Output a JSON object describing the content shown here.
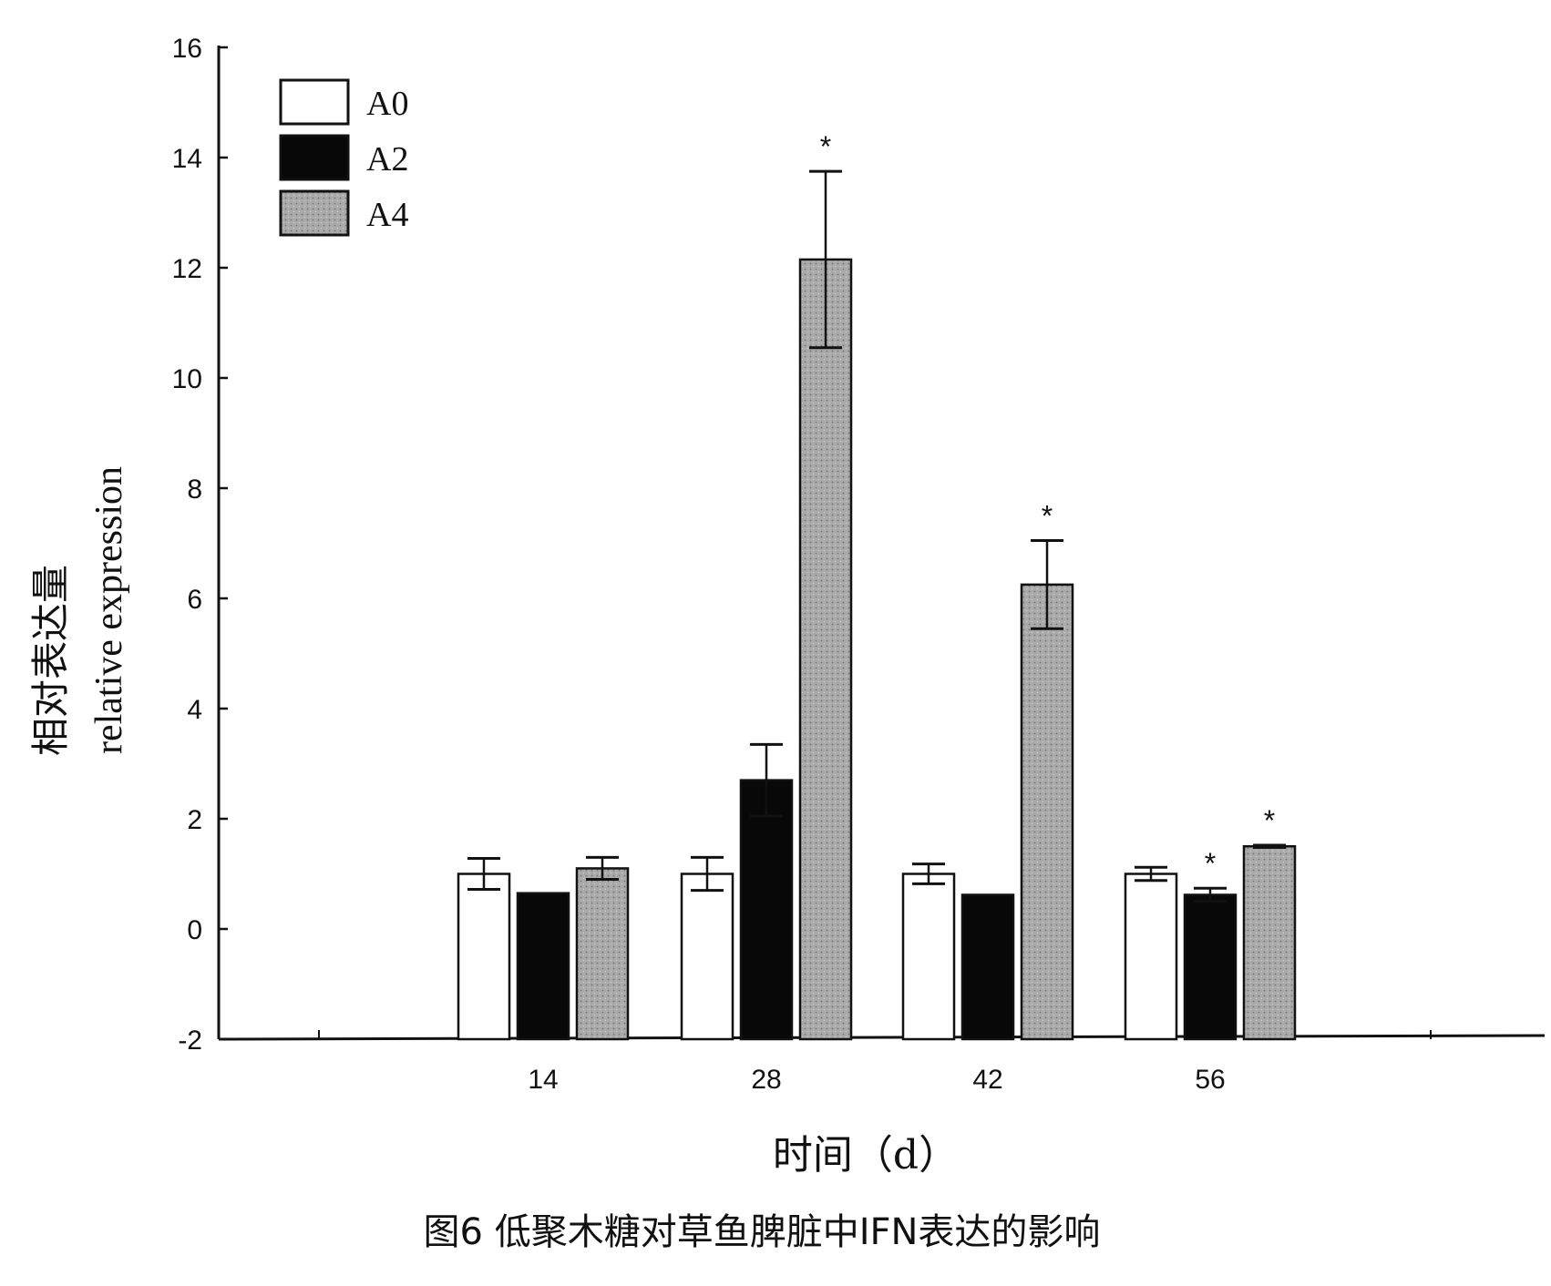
{
  "caption": "图6 低聚木糖对草鱼脾脏中IFN表达的影响",
  "chart_data": {
    "type": "bar",
    "categories": [
      "14",
      "28",
      "42",
      "56"
    ],
    "series": [
      {
        "name": "A0",
        "color": "#ffffff",
        "values": [
          1.0,
          1.0,
          1.0,
          1.0
        ],
        "errors": [
          0.28,
          0.3,
          0.18,
          0.12
        ],
        "significant": [
          false,
          false,
          false,
          false
        ]
      },
      {
        "name": "A2",
        "color": "#080808",
        "values": [
          0.65,
          2.7,
          0.62,
          0.62
        ],
        "errors": [
          0,
          0.65,
          0,
          0.12
        ],
        "significant": [
          false,
          false,
          false,
          true
        ]
      },
      {
        "name": "A4",
        "color": "#a9a9a9",
        "values": [
          1.1,
          12.15,
          6.25,
          1.5
        ],
        "errors": [
          0.2,
          1.6,
          0.8,
          0.02
        ],
        "significant": [
          false,
          true,
          true,
          true
        ]
      }
    ],
    "significance_marker": "*",
    "xlabel": "时间（d）",
    "ylabel_cn": "相对表达量",
    "ylabel_en": "relative expression",
    "ylim": [
      -2,
      16
    ],
    "yticks": [
      -2,
      0,
      2,
      4,
      6,
      8,
      10,
      12,
      14,
      16
    ],
    "legend_position": "top-left",
    "grid": false
  }
}
